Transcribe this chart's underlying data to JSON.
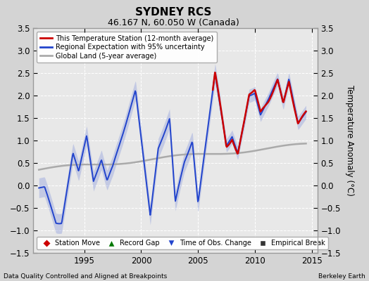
{
  "title": "SYDNEY RCS",
  "subtitle": "46.167 N, 60.050 W (Canada)",
  "ylabel": "Temperature Anomaly (°C)",
  "xlim": [
    1990.5,
    2015.5
  ],
  "ylim": [
    -1.5,
    3.5
  ],
  "yticks": [
    -1.5,
    -1.0,
    -0.5,
    0.0,
    0.5,
    1.0,
    1.5,
    2.0,
    2.5,
    3.0,
    3.5
  ],
  "xticks": [
    1995,
    2000,
    2005,
    2010,
    2015
  ],
  "footer_left": "Data Quality Controlled and Aligned at Breakpoints",
  "footer_right": "Berkeley Earth",
  "fig_bg_color": "#d4d4d4",
  "plot_bg_color": "#e8e8e8",
  "grid_color": "#ffffff",
  "title_fontsize": 11,
  "subtitle_fontsize": 9,
  "red_color": "#cc0000",
  "blue_color": "#2244cc",
  "blue_fill_color": "#8899dd",
  "gray_color": "#aaaaaa"
}
